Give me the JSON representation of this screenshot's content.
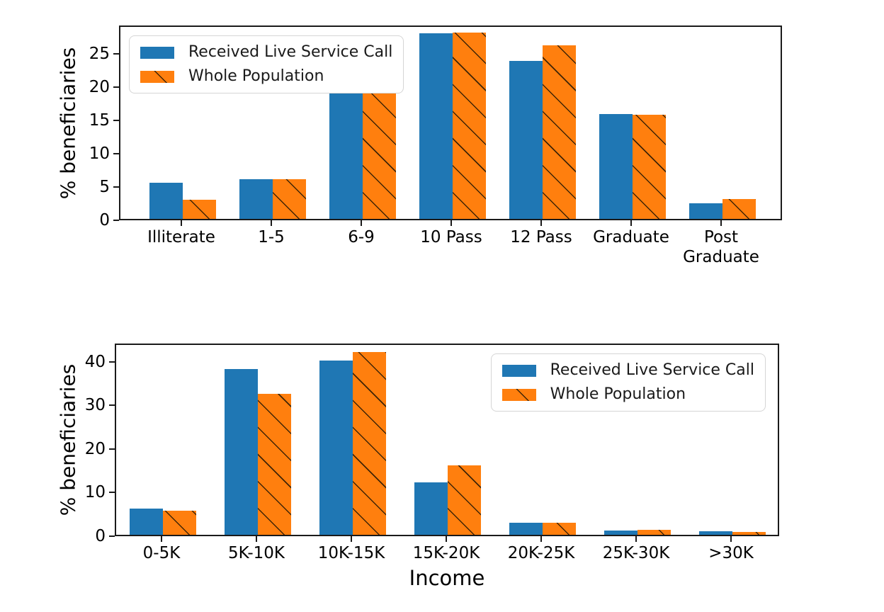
{
  "figure": {
    "background": "#ffffff",
    "text_color": "#000000",
    "spine_color": "#1a1a1a"
  },
  "colors": {
    "received_live_service_call": "#1f77b4",
    "whole_population": "#ff7f0e",
    "hatch_line": "#1e1405",
    "legend_border": "#d5d5d5"
  },
  "chart_data": [
    {
      "type": "bar",
      "title": "",
      "ylabel": "% beneficiaries",
      "xlabel": "",
      "categories": [
        "Illiterate",
        "1-5",
        "6-9",
        "10 Pass",
        "12 Pass",
        "Graduate",
        "Post\nGraduate"
      ],
      "series": [
        {
          "name": "Received Live Service Call",
          "color": "#1f77b4",
          "hatch": "",
          "values": [
            5.4,
            6.0,
            19.0,
            27.9,
            23.8,
            15.8,
            2.4
          ]
        },
        {
          "name": "Whole Population",
          "color": "#ff7f0e",
          "hatch": "\\",
          "values": [
            2.9,
            6.0,
            18.9,
            28.0,
            26.1,
            15.7,
            3.0
          ]
        }
      ],
      "ylim": [
        0,
        29.3
      ],
      "yticks": [
        0,
        5,
        10,
        15,
        20,
        25
      ],
      "grid": false,
      "legend_position": "upper-left"
    },
    {
      "type": "bar",
      "title": "",
      "ylabel": "% beneficiaries",
      "xlabel": "Income",
      "categories": [
        "0-5K",
        "5K-10K",
        "10K-15K",
        "15K-20K",
        "20K-25K",
        "25K-30K",
        ">30K"
      ],
      "series": [
        {
          "name": "Received Live Service Call",
          "color": "#1f77b4",
          "hatch": "",
          "values": [
            6.0,
            38.0,
            40.0,
            12.0,
            2.8,
            1.0,
            0.8
          ]
        },
        {
          "name": "Whole Population",
          "color": "#ff7f0e",
          "hatch": "\\",
          "values": [
            5.6,
            32.4,
            42.0,
            16.0,
            2.8,
            1.2,
            0.6
          ]
        }
      ],
      "ylim": [
        0,
        44.2
      ],
      "yticks": [
        0,
        10,
        20,
        30,
        40
      ],
      "grid": false,
      "legend_position": "upper-right"
    }
  ]
}
